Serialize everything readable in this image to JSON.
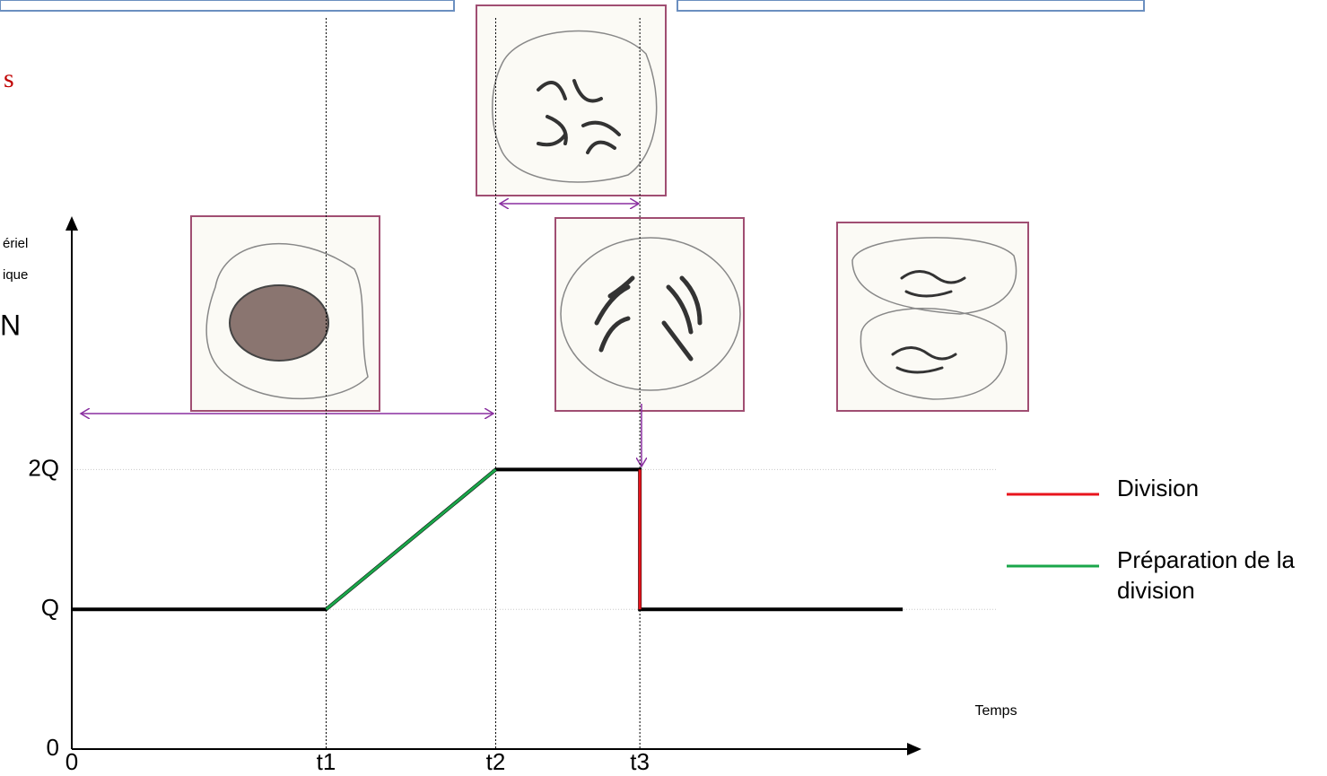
{
  "chart_data": {
    "type": "line",
    "annotations": [
      "s",
      "N"
    ],
    "ylabel_lines": [
      "ériel",
      "ique"
    ],
    "xlabel": "Temps",
    "xlim": [
      0,
      10
    ],
    "ylim": [
      0,
      3.8
    ],
    "xticks": [
      0,
      {
        "value": 3,
        "label": "t1"
      },
      {
        "value": 5,
        "label": "t2"
      },
      {
        "value": 6.7,
        "label": "t3"
      }
    ],
    "yticks": [
      0,
      {
        "value": 1,
        "label": "Q"
      },
      {
        "value": 2,
        "label": "2Q"
      }
    ],
    "series": [
      {
        "color": "#000000",
        "x": [
          0,
          3,
          5,
          6.7,
          6.7,
          9.8
        ],
        "values": [
          1,
          1,
          2,
          2,
          1,
          1
        ]
      },
      {
        "name": "Préparation de la division",
        "color": "#1aa64a",
        "x": [
          3,
          5
        ],
        "values": [
          1,
          2
        ]
      },
      {
        "name": "Division",
        "color": "#e8141c",
        "x": [
          6.7,
          6.7
        ],
        "values": [
          2,
          1
        ]
      }
    ]
  }
}
